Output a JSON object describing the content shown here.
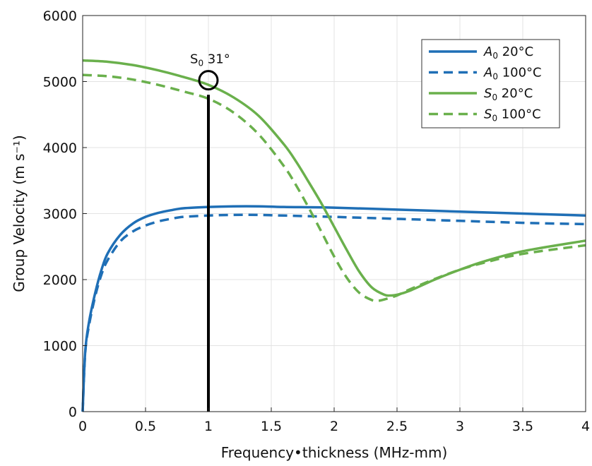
{
  "chart_data": {
    "type": "line",
    "xlabel": "Frequency•thickness (MHz-mm)",
    "ylabel": "Group Velocity (m s⁻¹)",
    "xlim": [
      0,
      4
    ],
    "ylim": [
      0,
      6000
    ],
    "xticks": [
      "0",
      "0.5",
      "1",
      "1.5",
      "2",
      "2.5",
      "3",
      "3.5",
      "4"
    ],
    "yticks": [
      "0",
      "1000",
      "2000",
      "3000",
      "4000",
      "5000",
      "6000"
    ],
    "grid": true,
    "legend_position": "top-right",
    "series": [
      {
        "name": "A₀ 20°C",
        "label": {
          "mode": "A",
          "sub": "0",
          "temp": " 20°C"
        },
        "color": "#1f6fb6",
        "dash": "solid",
        "x": [
          0,
          0.02,
          0.05,
          0.1,
          0.15,
          0.2,
          0.3,
          0.4,
          0.5,
          0.6,
          0.7,
          0.8,
          1.0,
          1.2,
          1.4,
          1.6,
          2.0,
          2.5,
          3.0,
          3.5,
          4.0
        ],
        "y": [
          0,
          900,
          1350,
          1800,
          2150,
          2400,
          2680,
          2850,
          2950,
          3010,
          3050,
          3080,
          3100,
          3110,
          3110,
          3100,
          3090,
          3060,
          3030,
          3000,
          2970
        ]
      },
      {
        "name": "A₀ 100°C",
        "label": {
          "mode": "A",
          "sub": "0",
          "temp": " 100°C"
        },
        "color": "#1f6fb6",
        "dash": "dashed",
        "x": [
          0,
          0.02,
          0.05,
          0.1,
          0.15,
          0.2,
          0.3,
          0.4,
          0.5,
          0.6,
          0.7,
          0.8,
          1.0,
          1.2,
          1.4,
          1.6,
          2.0,
          2.5,
          3.0,
          3.5,
          4.0
        ],
        "y": [
          0,
          880,
          1300,
          1750,
          2080,
          2300,
          2580,
          2730,
          2820,
          2880,
          2920,
          2950,
          2970,
          2980,
          2980,
          2970,
          2950,
          2920,
          2890,
          2860,
          2840
        ]
      },
      {
        "name": "S₀ 20°C",
        "label": {
          "mode": "S",
          "sub": "0",
          "temp": " 20°C"
        },
        "color": "#6ab04c",
        "dash": "solid",
        "x": [
          0,
          0.2,
          0.4,
          0.6,
          0.8,
          1.0,
          1.2,
          1.4,
          1.6,
          1.7,
          1.8,
          1.9,
          2.0,
          2.1,
          2.2,
          2.3,
          2.4,
          2.45,
          2.5,
          2.6,
          2.8,
          3.0,
          3.2,
          3.5,
          4.0
        ],
        "y": [
          5320,
          5300,
          5250,
          5170,
          5070,
          4950,
          4760,
          4480,
          4050,
          3780,
          3470,
          3150,
          2800,
          2450,
          2120,
          1880,
          1770,
          1760,
          1770,
          1830,
          2000,
          2150,
          2280,
          2430,
          2590
        ]
      },
      {
        "name": "S₀ 100°C",
        "label": {
          "mode": "S",
          "sub": "0",
          "temp": " 100°C"
        },
        "color": "#6ab04c",
        "dash": "dashed",
        "x": [
          0,
          0.2,
          0.4,
          0.6,
          0.8,
          1.0,
          1.2,
          1.4,
          1.6,
          1.7,
          1.8,
          1.9,
          2.0,
          2.1,
          2.2,
          2.3,
          2.35,
          2.4,
          2.5,
          2.6,
          2.8,
          3.0,
          3.2,
          3.5,
          4.0
        ],
        "y": [
          5100,
          5080,
          5030,
          4950,
          4850,
          4740,
          4530,
          4200,
          3720,
          3420,
          3080,
          2720,
          2350,
          2030,
          1800,
          1690,
          1680,
          1700,
          1760,
          1850,
          2010,
          2150,
          2260,
          2390,
          2520
        ]
      }
    ],
    "annotation": {
      "text_main": "S",
      "text_sub": "0",
      "text_rest": "  31°",
      "x": 1,
      "y": 5020
    },
    "vertical_line": {
      "x": 1,
      "y_from": 0,
      "y_to": 4800
    }
  }
}
